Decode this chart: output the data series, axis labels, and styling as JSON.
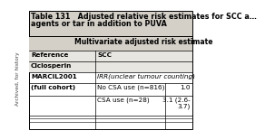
{
  "title_line1": "Table 131   Adjusted relative risk estimates for SCC a…",
  "title_line2": "agents or tar in addition to PUVA",
  "col_header": "Multivariate adjusted risk estimate",
  "ref_label": "Reference",
  "scc_label": "SCC",
  "ciclo_label": "Ciclosperin",
  "marcil_label": "MARCIL2001",
  "cohort_label": "(full cohort)",
  "irr_label": "IRR(unclear tumour counting)",
  "no_csa_label": "No CSA use (n=816)",
  "no_csa_value": "1.0",
  "csa_label": "CSA use (n=28)",
  "csa_value_line1": "3.1 (2.6-",
  "csa_value_line2": "3.7)",
  "archived_text": "Archived, for history",
  "bg_gray": "#d4d0c8",
  "bg_white": "#ffffff",
  "bg_light": "#e8e6e0",
  "text_color": "#000000",
  "border_color": "#000000",
  "font_size_title": 5.8,
  "font_size_body": 5.2,
  "font_size_archived": 4.2
}
